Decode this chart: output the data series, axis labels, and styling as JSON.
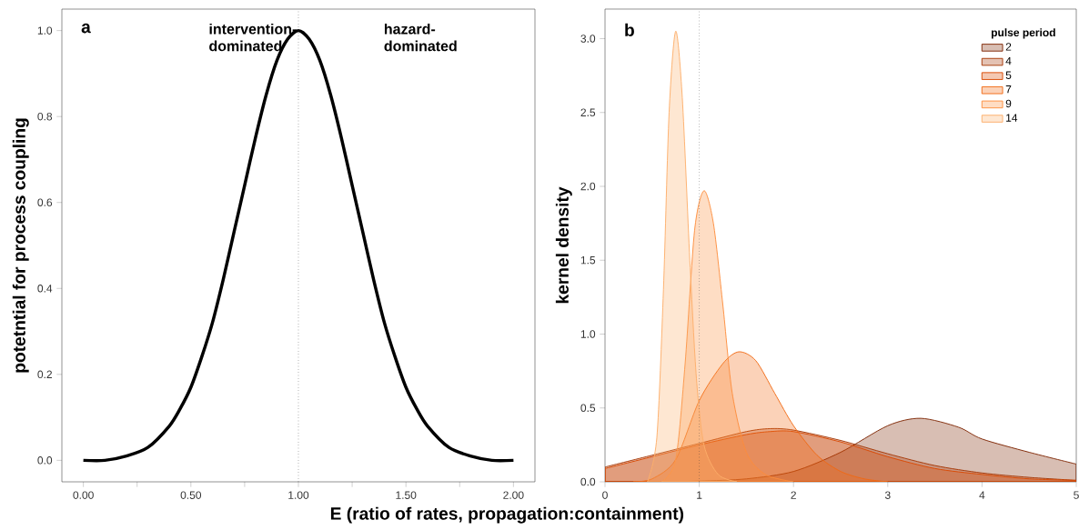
{
  "chart_data": [
    {
      "type": "line",
      "xlabel": "E (ratio of rates, propagation:containment)",
      "ylabel": "potetntial for process coupling",
      "annotations": [
        "a",
        "intervention-dominated",
        "hazard-dominated"
      ],
      "x": [
        0,
        0.1,
        0.2,
        0.3,
        0.4,
        0.45,
        0.5,
        0.55,
        0.6,
        0.65,
        0.7,
        0.75,
        0.8,
        0.85,
        0.9,
        0.95,
        1.0,
        1.05,
        1.1,
        1.15,
        1.2,
        1.25,
        1.3,
        1.35,
        1.4,
        1.45,
        1.5,
        1.55,
        1.6,
        1.7,
        1.8,
        1.9,
        2.0
      ],
      "series": [
        {
          "color": "#000000",
          "values": [
            0.0,
            0.0,
            0.01,
            0.03,
            0.08,
            0.12,
            0.17,
            0.24,
            0.32,
            0.42,
            0.53,
            0.64,
            0.75,
            0.85,
            0.93,
            0.98,
            1.0,
            0.98,
            0.93,
            0.85,
            0.75,
            0.64,
            0.53,
            0.42,
            0.32,
            0.24,
            0.17,
            0.12,
            0.08,
            0.03,
            0.01,
            0.0,
            0.0
          ]
        }
      ],
      "xlim": [
        -0.1,
        2.1
      ],
      "ylim": [
        -0.05,
        1.05
      ],
      "xticks": [
        {
          "value": 0,
          "label": "0.00"
        },
        {
          "value": 0.25,
          "label": null
        },
        {
          "value": 0.5,
          "label": "0.50"
        },
        {
          "value": 0.75,
          "label": null
        },
        {
          "value": 1,
          "label": "1.00"
        },
        {
          "value": 1.25,
          "label": null
        },
        {
          "value": 1.5,
          "label": "1.50"
        },
        {
          "value": 1.75,
          "label": null
        },
        {
          "value": 2,
          "label": "2.00"
        }
      ],
      "yticks": [
        {
          "value": 0,
          "label": "0.0"
        },
        {
          "value": 0.2,
          "label": "0.2"
        },
        {
          "value": 0.4,
          "label": "0.4"
        },
        {
          "value": 0.6,
          "label": "0.6"
        },
        {
          "value": 0.8,
          "label": "0.8"
        },
        {
          "value": 1,
          "label": "1.0"
        }
      ],
      "ref_lines": [
        {
          "axis": "x",
          "value": 1,
          "color": "#555555",
          "line_style": "dotted"
        }
      ],
      "grid": false,
      "marker": "none",
      "line_style": "solid"
    },
    {
      "type": "area",
      "ylabel": "kernel density",
      "legend_title": "pulse period",
      "legend": "top right",
      "annotations": [
        "b"
      ],
      "series": [
        {
          "name": "2",
          "color": "#7f2704",
          "x": [
            0,
            0.5,
            1,
            1.5,
            2,
            2.5,
            3,
            3.35,
            3.75,
            4,
            4.5,
            5
          ],
          "values": [
            0,
            0,
            0.005,
            0.02,
            0.07,
            0.2,
            0.38,
            0.43,
            0.37,
            0.29,
            0.2,
            0.12
          ]
        },
        {
          "name": "4",
          "color": "#a63603",
          "x": [
            0,
            0.5,
            1,
            1.5,
            1.75,
            2,
            2.5,
            3,
            3.5,
            4,
            4.5,
            5
          ],
          "values": [
            0.1,
            0.18,
            0.26,
            0.34,
            0.36,
            0.35,
            0.28,
            0.19,
            0.11,
            0.06,
            0.03,
            0.01
          ]
        },
        {
          "name": "5",
          "color": "#d94801",
          "x": [
            0,
            0.5,
            1,
            1.5,
            1.75,
            2,
            2.5,
            3,
            3.5,
            4,
            4.5,
            5
          ],
          "values": [
            0.09,
            0.17,
            0.25,
            0.32,
            0.34,
            0.34,
            0.27,
            0.17,
            0.09,
            0.05,
            0.02,
            0.01
          ]
        },
        {
          "name": "7",
          "color": "#f16913",
          "x": [
            0.3,
            0.5,
            0.75,
            1,
            1.25,
            1.42,
            1.6,
            1.8,
            2.0,
            2.25,
            2.5,
            2.75,
            3
          ],
          "values": [
            0,
            0.02,
            0.15,
            0.55,
            0.8,
            0.88,
            0.82,
            0.6,
            0.38,
            0.18,
            0.07,
            0.02,
            0
          ]
        },
        {
          "name": "9",
          "color": "#fd8d3c",
          "x": [
            0.6,
            0.75,
            0.85,
            0.95,
            1.05,
            1.15,
            1.25,
            1.35,
            1.5,
            1.7,
            2.0
          ],
          "values": [
            0,
            0.15,
            0.8,
            1.7,
            1.97,
            1.75,
            1.2,
            0.6,
            0.2,
            0.05,
            0
          ]
        },
        {
          "name": "14",
          "color": "#fdae6b",
          "x": [
            0.45,
            0.55,
            0.62,
            0.68,
            0.75,
            0.82,
            0.9,
            0.97,
            1.05,
            1.2,
            1.4
          ],
          "values": [
            0,
            0.3,
            1.3,
            2.5,
            3.05,
            2.6,
            1.5,
            0.7,
            0.25,
            0.05,
            0
          ]
        }
      ],
      "xlim": [
        0,
        5
      ],
      "ylim": [
        0,
        3.2
      ],
      "xticks": [
        0,
        1,
        2,
        3,
        4,
        5
      ],
      "yticks": [
        {
          "value": 0,
          "label": "0.0"
        },
        {
          "value": 0.5,
          "label": "0.5"
        },
        {
          "value": 1,
          "label": "1.0"
        },
        {
          "value": 1.5,
          "label": "1.5"
        },
        {
          "value": 2,
          "label": "2.0"
        },
        {
          "value": 2.5,
          "label": "2.5"
        },
        {
          "value": 3,
          "label": "3.0"
        }
      ],
      "ref_lines": [
        {
          "axis": "x",
          "value": 1,
          "color": "#333333",
          "line_style": "dotted"
        }
      ],
      "grid": false,
      "marker": "none"
    }
  ]
}
